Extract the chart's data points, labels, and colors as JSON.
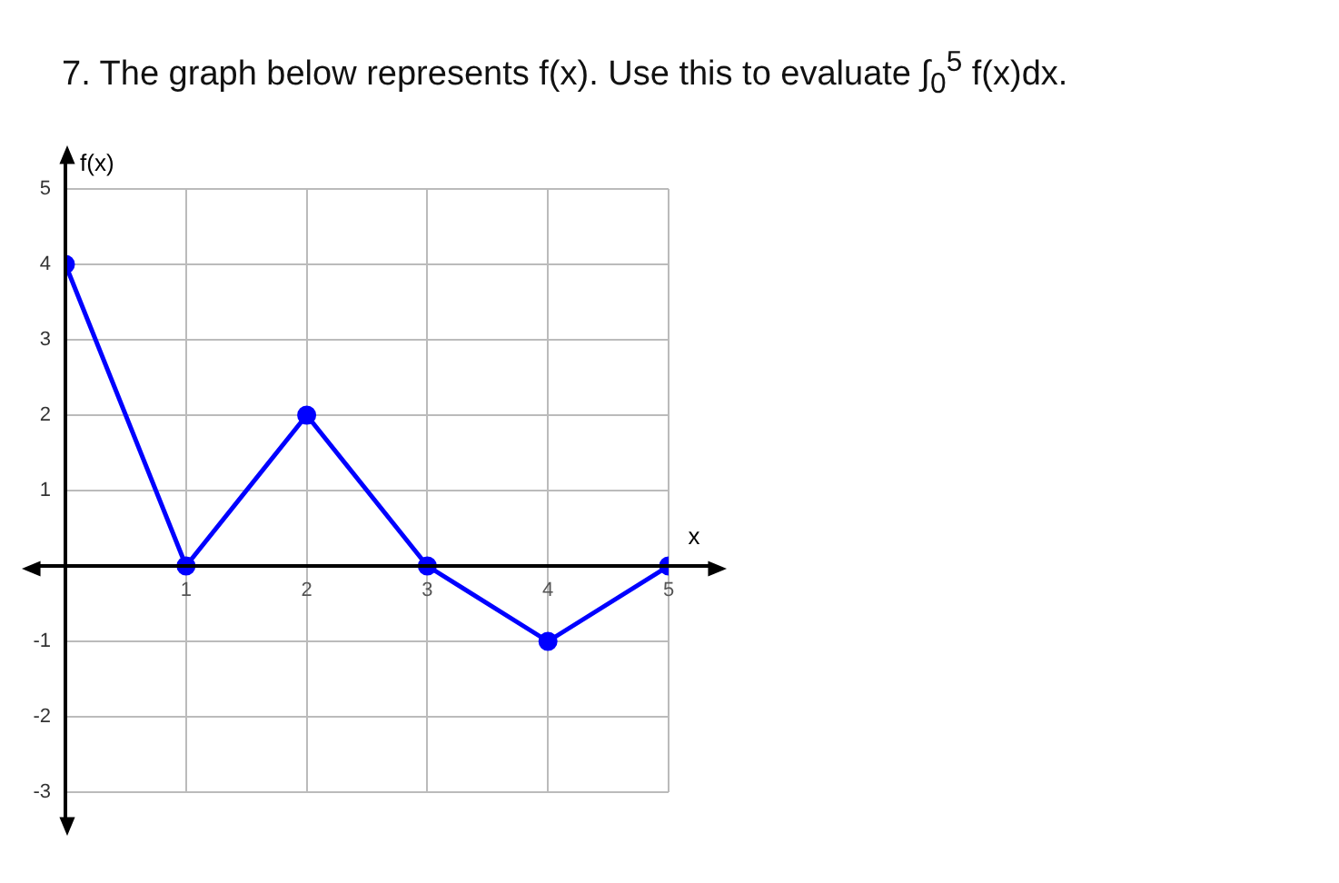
{
  "chart_data": {
    "type": "line",
    "title": "7.  The graph below represents f(x). Use this to evaluate ∫$_{0}$$^{5}$ f(x)dx.",
    "xlabel": "x",
    "ylabel": "f(x)",
    "x": [
      0,
      1,
      2,
      3,
      4,
      5
    ],
    "series": [
      {
        "color": "#0000ff",
        "values": [
          4,
          0,
          2,
          0,
          -1,
          0
        ]
      }
    ],
    "xlim": [
      0,
      5
    ],
    "xticks": [
      {
        "value": 0,
        "label": null
      },
      1,
      2,
      3,
      4,
      5
    ],
    "ylim": [
      -3,
      5
    ],
    "yticks": [
      -3,
      -2,
      -1,
      {
        "value": 0,
        "label": null
      },
      1,
      2,
      3,
      4,
      5
    ],
    "grid": true,
    "legend": false,
    "marker": "circle",
    "line_style": "solid"
  }
}
